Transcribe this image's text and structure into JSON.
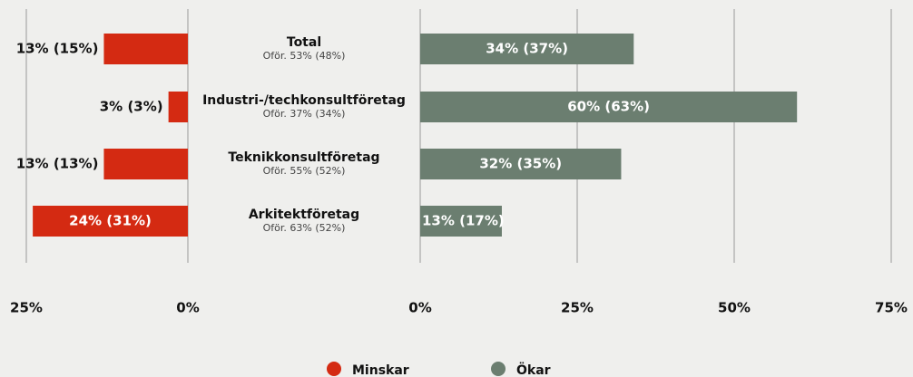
{
  "chart_data": {
    "type": "diverging_bar",
    "categories": [
      "Total",
      "Industri-/techkonsultföretag",
      "Teknikkonsultföretag",
      "Arkitektföretag"
    ],
    "category_notes": [
      "Oför. 53% (48%)",
      "Oför. 37% (34%)",
      "Oför. 55% (52%)",
      "Oför. 63% (52%)"
    ],
    "series": [
      {
        "name": "Minskar",
        "color": "#d42a12",
        "side": "left",
        "values": [
          13,
          3,
          13,
          24
        ],
        "value_labels": [
          "13% (15%)",
          "3% (3%)",
          "13% (13%)",
          "24% (31%)"
        ]
      },
      {
        "name": "Ökar",
        "color": "#6b7e70",
        "side": "right",
        "values": [
          34,
          60,
          32,
          13
        ],
        "value_labels": [
          "34% (37%)",
          "60% (63%)",
          "32% (35%)",
          "13% (17%)"
        ]
      }
    ],
    "left_xlim": [
      0,
      25
    ],
    "left_xticks": [
      {
        "value": 25,
        "label": "25%"
      },
      {
        "value": 0,
        "label": "0%"
      }
    ],
    "xlim": [
      0,
      75
    ],
    "xticks": [
      {
        "value": 0,
        "label": "0%"
      },
      {
        "value": 25,
        "label": "25%"
      },
      {
        "value": 50,
        "label": "50%"
      },
      {
        "value": 75,
        "label": "75%"
      }
    ],
    "grid": true
  }
}
